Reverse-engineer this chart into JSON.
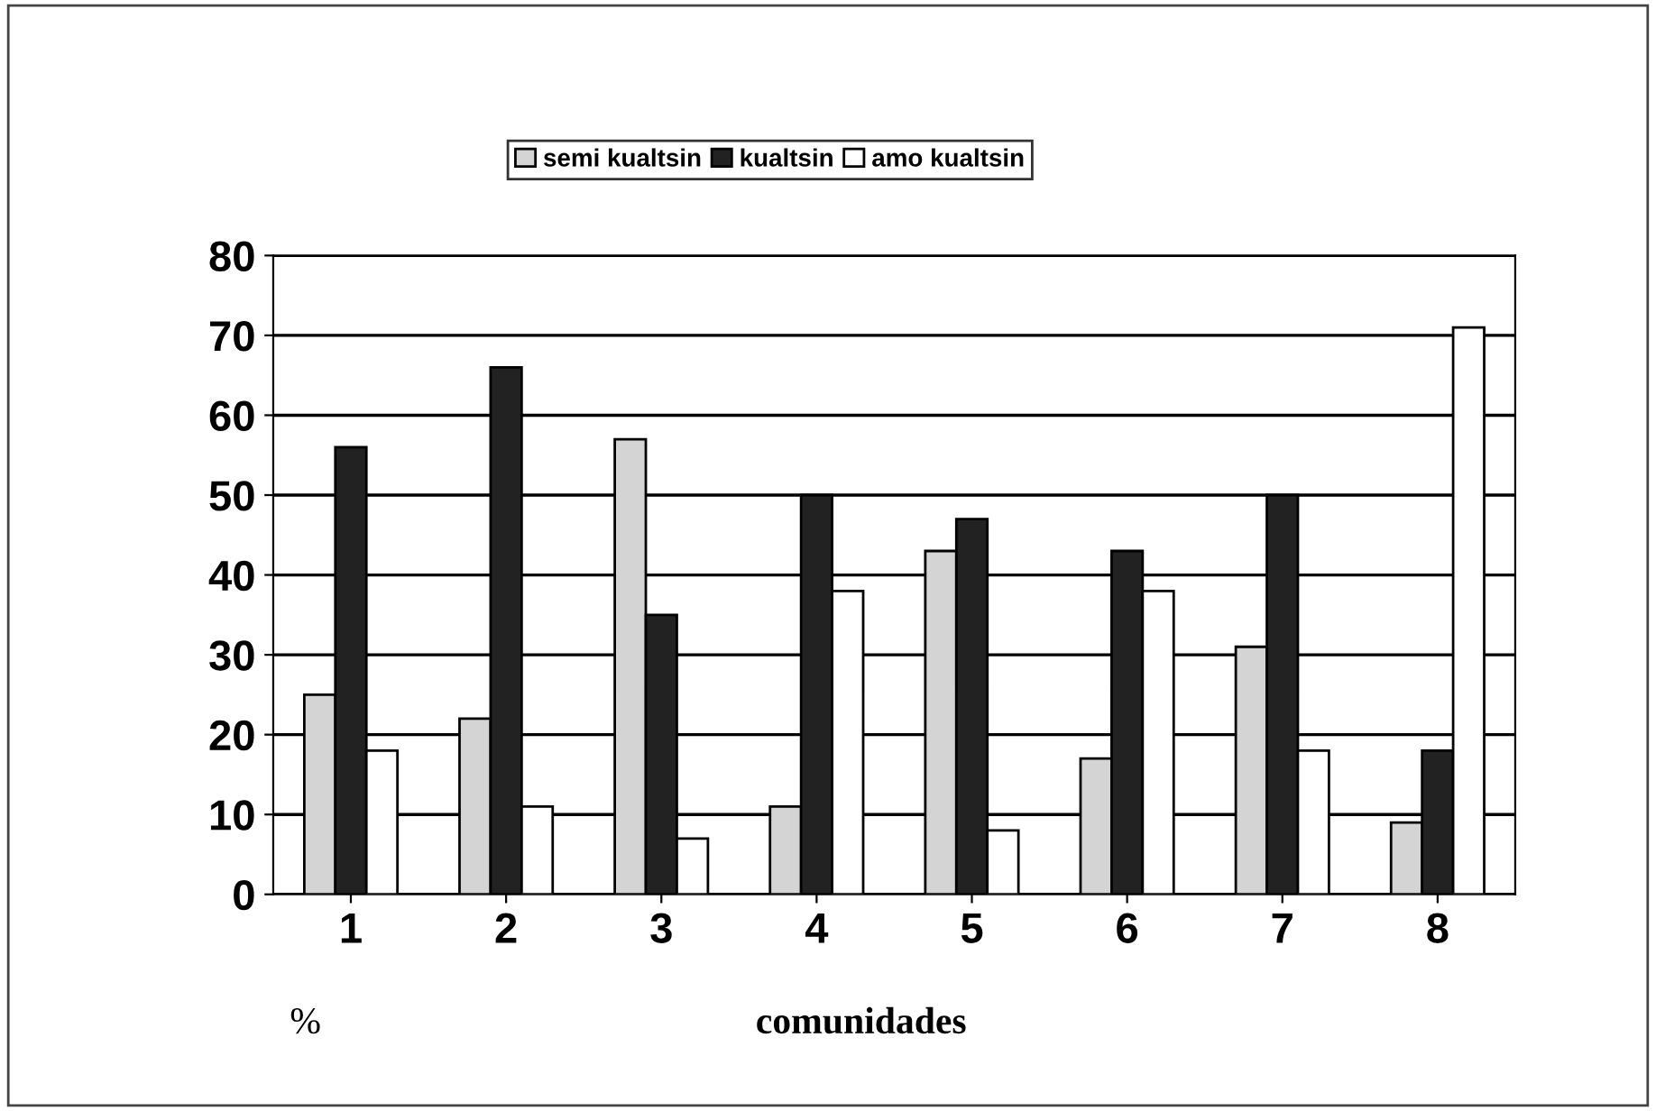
{
  "chart_data": {
    "type": "bar",
    "categories": [
      "1",
      "2",
      "3",
      "4",
      "5",
      "6",
      "7",
      "8"
    ],
    "series": [
      {
        "name": "semi kualtsin",
        "color": "#d4d4d4",
        "values": [
          25,
          22,
          57,
          11,
          43,
          17,
          31,
          9
        ]
      },
      {
        "name": "kualtsin",
        "color": "#222222",
        "values": [
          56,
          66,
          35,
          50,
          47,
          43,
          50,
          18
        ]
      },
      {
        "name": "amo kualtsin",
        "color": "#ffffff",
        "values": [
          18,
          11,
          7,
          38,
          8,
          38,
          18,
          71
        ]
      }
    ],
    "xlabel": "comunidades",
    "annotations": [
      "%"
    ],
    "ylim": [
      0,
      80
    ],
    "yticks": [
      0,
      10,
      20,
      30,
      40,
      50,
      60,
      70,
      80
    ],
    "grid": "y",
    "legend": "top"
  }
}
